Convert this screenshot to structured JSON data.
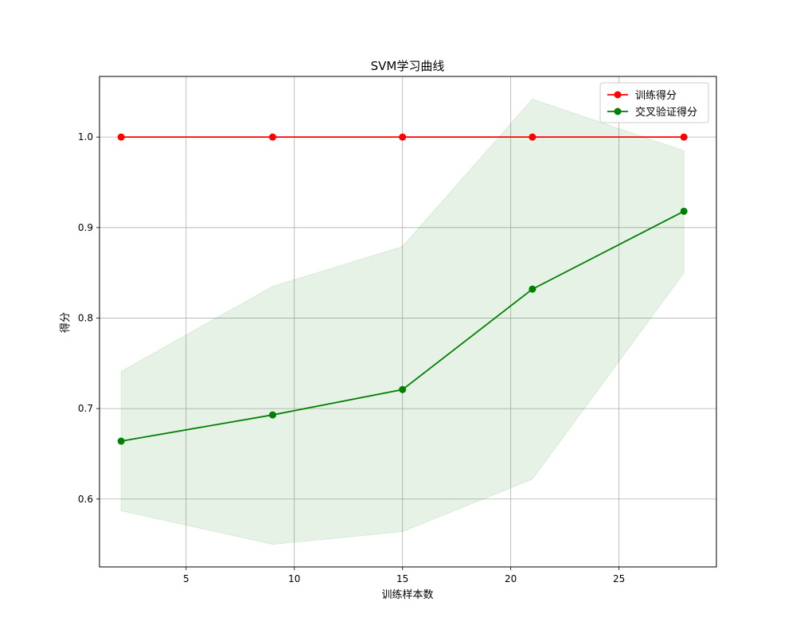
{
  "chart_data": {
    "type": "line",
    "title": "SVM学习曲线",
    "xlabel": "训练样本数",
    "ylabel": "得分",
    "x": [
      2,
      9,
      15,
      21,
      28
    ],
    "xlim": [
      1,
      29.5
    ],
    "ylim": [
      0.525,
      1.067
    ],
    "xticks": [
      5,
      10,
      15,
      20,
      25
    ],
    "yticks": [
      0.6,
      0.7,
      0.8,
      0.9,
      1.0
    ],
    "grid": true,
    "legend_position": "top-right",
    "series": [
      {
        "name": "训练得分",
        "color": "#ff0000",
        "values": [
          1.0,
          1.0,
          1.0,
          1.0,
          1.0
        ],
        "band_lower": [
          1.0,
          1.0,
          1.0,
          1.0,
          1.0
        ],
        "band_upper": [
          1.0,
          1.0,
          1.0,
          1.0,
          1.0
        ]
      },
      {
        "name": "交叉验证得分",
        "color": "#008000",
        "values": [
          0.664,
          0.693,
          0.721,
          0.832,
          0.918
        ],
        "band_lower": [
          0.587,
          0.55,
          0.564,
          0.622,
          0.85
        ],
        "band_upper": [
          0.741,
          0.835,
          0.879,
          1.042,
          0.985
        ]
      }
    ]
  }
}
